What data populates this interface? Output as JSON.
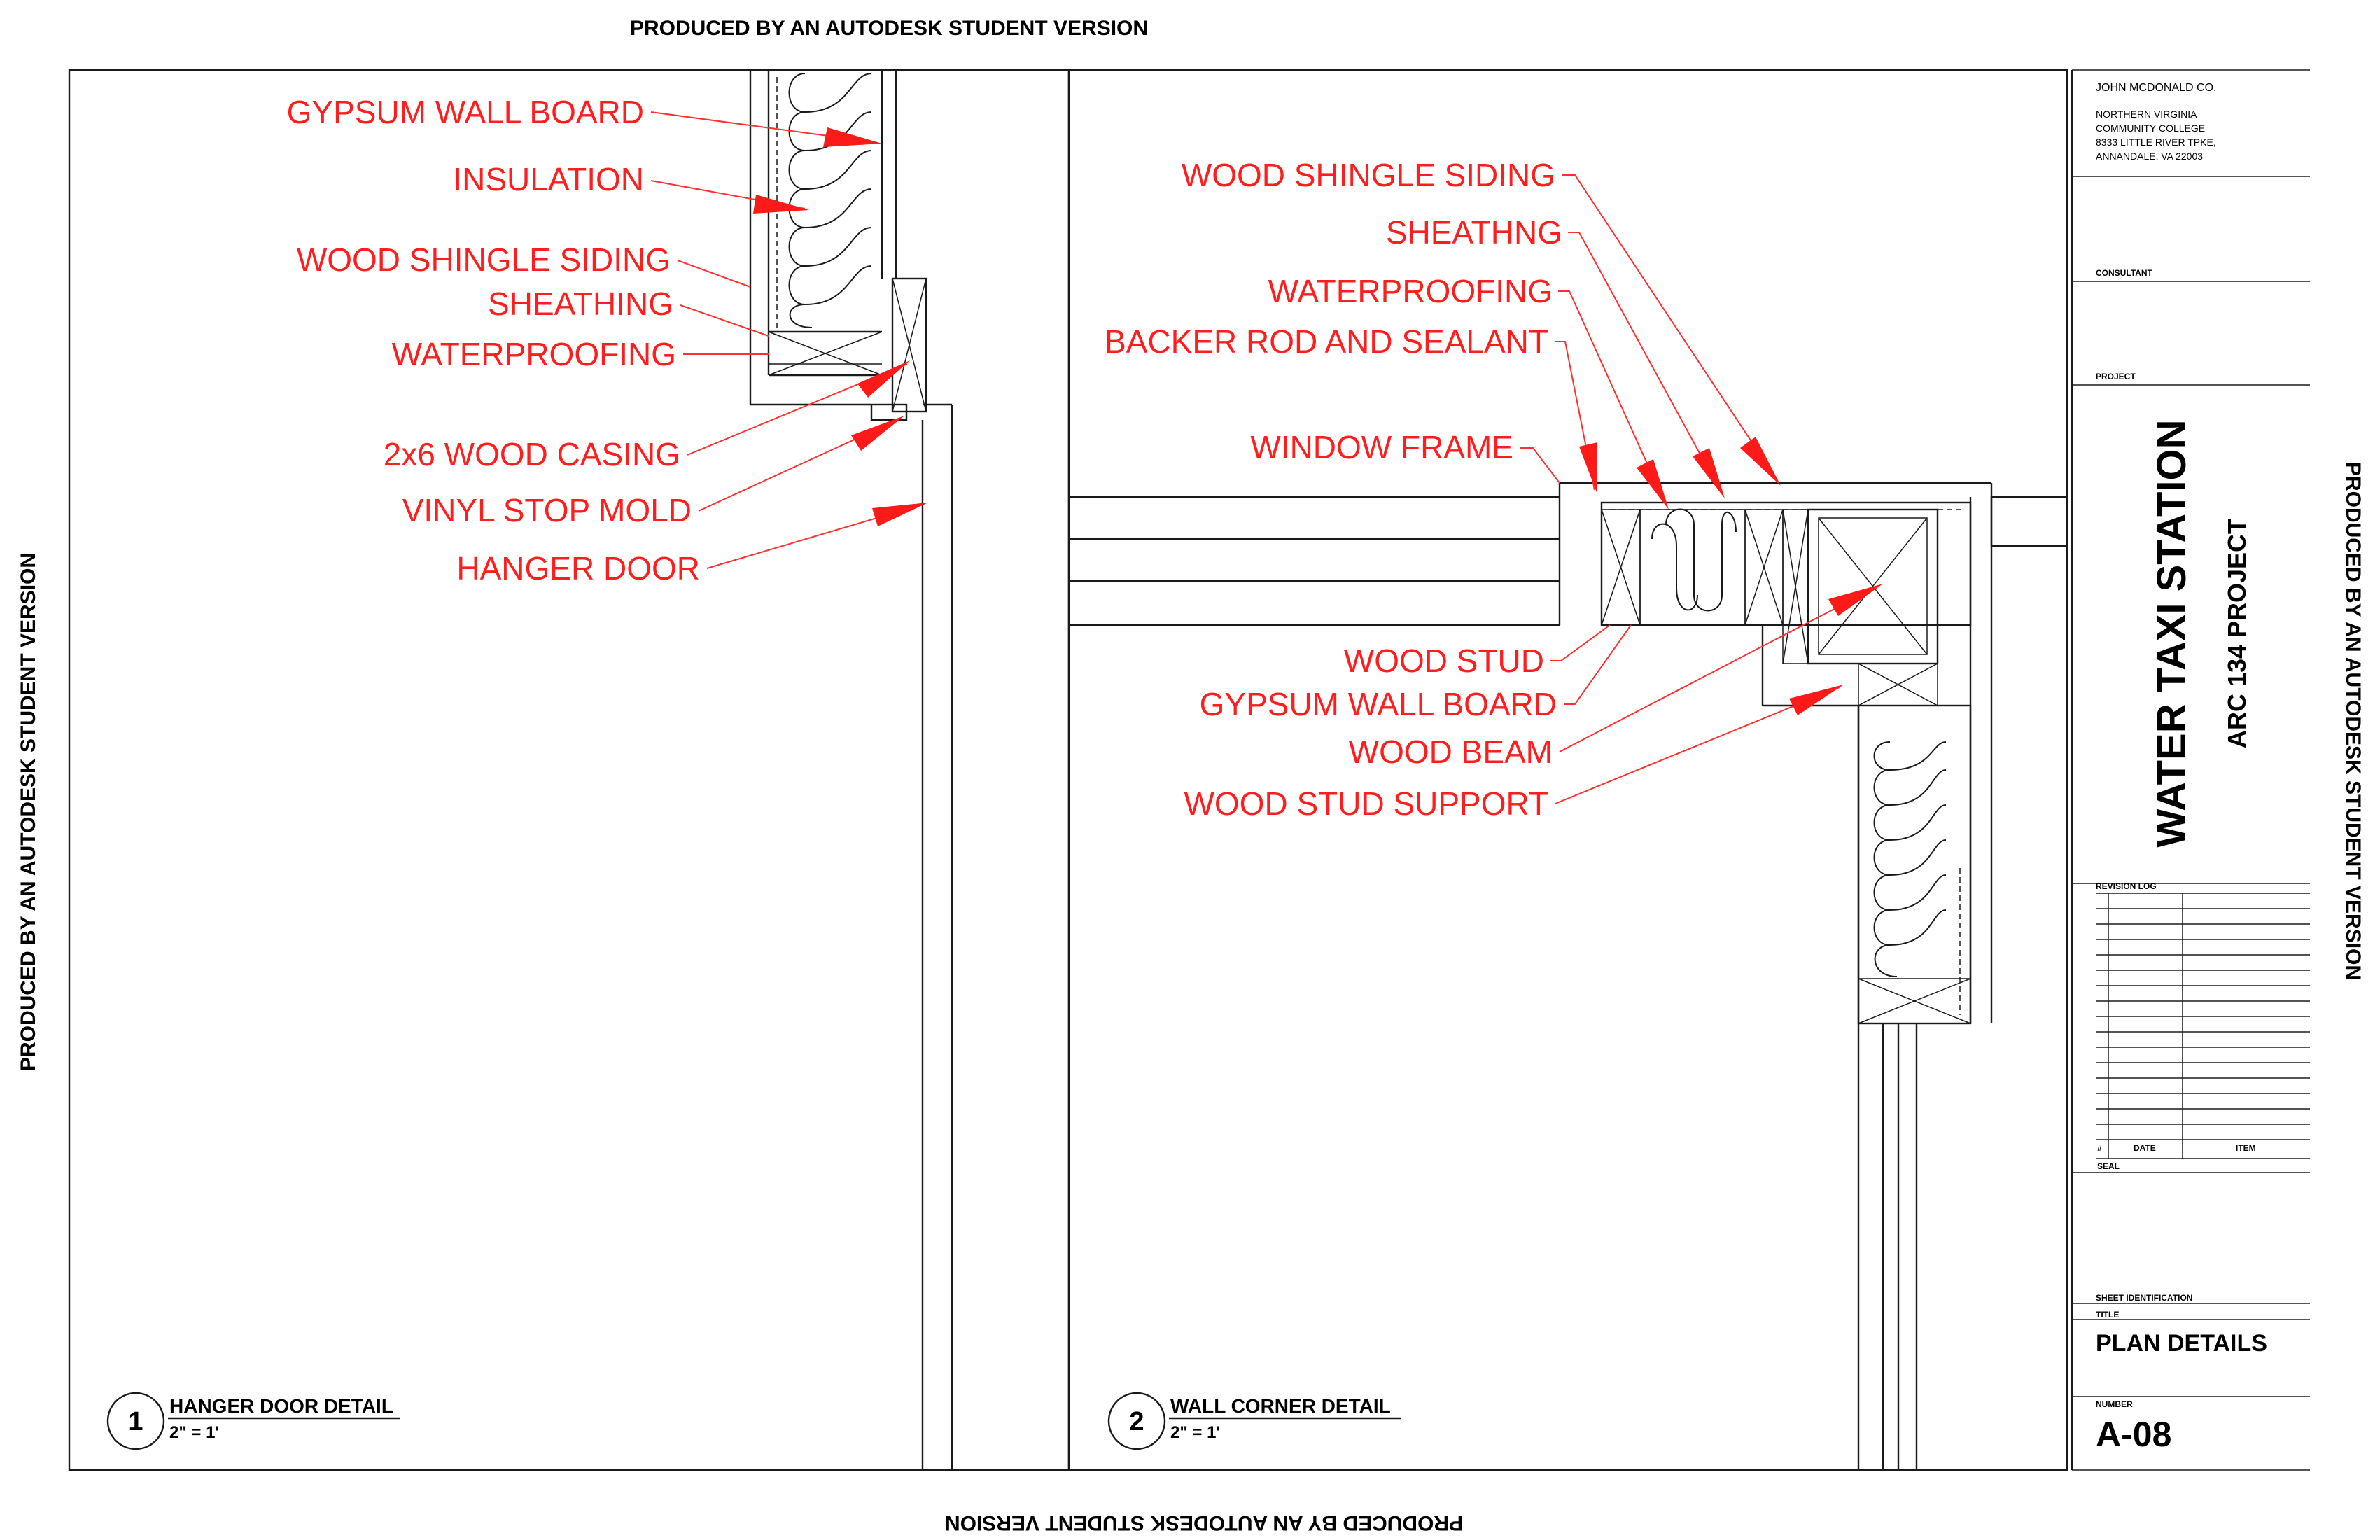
{
  "watermark": "PRODUCED BY AN AUTODESK STUDENT VERSION",
  "detail1": {
    "number": "1",
    "title": "HANGER DOOR DETAIL",
    "scale": "2\" = 1'",
    "labels": [
      "GYPSUM WALL BOARD",
      "INSULATION",
      "WOOD SHINGLE SIDING",
      "SHEATHING",
      "WATERPROOFING",
      "2x6 WOOD CASING",
      "VINYL STOP MOLD",
      "HANGER DOOR"
    ]
  },
  "detail2": {
    "number": "2",
    "title": "WALL CORNER DETAIL",
    "scale": "2\" = 1'",
    "labels": [
      "WOOD SHINGLE SIDING",
      "SHEATHNG",
      "WATERPROOFING",
      "BACKER ROD AND SEALANT",
      "WINDOW FRAME",
      "WOOD STUD",
      "GYPSUM WALL BOARD",
      "WOOD BEAM",
      "WOOD STUD SUPPORT"
    ]
  },
  "title_block": {
    "firm": "JOHN MCDONALD CO.",
    "address": [
      "NORTHERN VIRGINIA",
      "COMMUNITY COLLEGE",
      "8333 LITTLE RIVER TPKE,",
      "ANNANDALE, VA 22003"
    ],
    "consultant_label": "CONSULTANT",
    "project_label": "PROJECT",
    "project_name": "WATER TAXI STATION",
    "project_sub": "ARC 134 PROJECT",
    "revision_log_label": "REVISION LOG",
    "rev_cols": [
      "#",
      "DATE",
      "ITEM"
    ],
    "seal_label": "SEAL",
    "sheet_id_label": "SHEET IDENTIFICATION",
    "title_label": "TITLE",
    "sheet_title": "PLAN DETAILS",
    "number_label": "NUMBER",
    "sheet_number": "A-08"
  }
}
